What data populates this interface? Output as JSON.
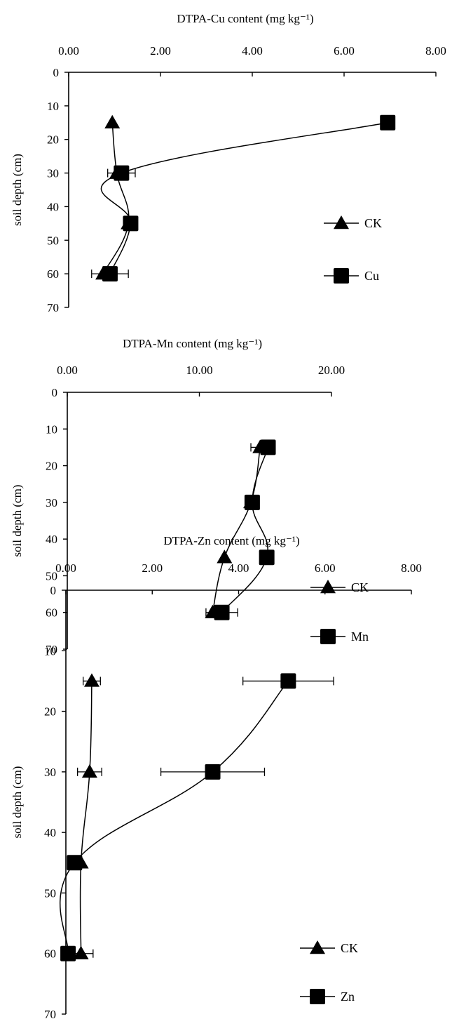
{
  "chart_data": [
    {
      "type": "line",
      "title": "DTPA-Cu content (mg kg⁻¹)",
      "xlabel": "DTPA-Cu content (mg kg⁻¹)",
      "ylabel": "soil depth (cm)",
      "xlim": [
        0,
        8
      ],
      "ylim": [
        0,
        70
      ],
      "x_axis_position": "top",
      "y_axis_reversed": true,
      "x_tick_labels": [
        "0.00",
        "2.00",
        "4.00",
        "6.00",
        "8.00"
      ],
      "y_tick_labels": [
        "0",
        "10",
        "20",
        "30",
        "40",
        "50",
        "60",
        "70"
      ],
      "legend_placement": "right",
      "grid": false,
      "series": [
        {
          "name": "CK",
          "marker": "triangle",
          "depth": [
            15,
            30,
            45,
            60
          ],
          "values": [
            0.95,
            1.05,
            1.3,
            0.75
          ],
          "error": [
            0,
            0,
            0,
            0
          ]
        },
        {
          "name": "Cu",
          "marker": "square",
          "depth": [
            15,
            30,
            45,
            60
          ],
          "values": [
            6.95,
            1.15,
            1.35,
            0.9
          ],
          "error": [
            0,
            0.3,
            0,
            0.4
          ]
        }
      ]
    },
    {
      "type": "line",
      "title": "DTPA-Mn content (mg kg⁻¹)",
      "xlabel": "DTPA-Mn content (mg kg⁻¹)",
      "ylabel": "soil depth (cm)",
      "xlim": [
        0,
        20
      ],
      "ylim": [
        0,
        70
      ],
      "x_axis_position": "top",
      "y_axis_reversed": true,
      "x_tick_labels": [
        "0.00",
        "10.00",
        "20.00"
      ],
      "y_tick_labels": [
        "0",
        "10",
        "20",
        "30",
        "40",
        "50",
        "60",
        "70"
      ],
      "legend_placement": "right",
      "grid": false,
      "series": [
        {
          "name": "CK",
          "marker": "triangle",
          "depth": [
            15,
            30,
            45,
            60
          ],
          "values": [
            14.6,
            13.9,
            11.9,
            11.0
          ],
          "error": [
            0.7,
            0,
            0,
            0
          ]
        },
        {
          "name": "Mn",
          "marker": "square",
          "depth": [
            15,
            30,
            45,
            60
          ],
          "values": [
            15.2,
            14.0,
            15.1,
            11.7
          ],
          "error": [
            0,
            0,
            0,
            1.2
          ]
        }
      ]
    },
    {
      "type": "line",
      "title": "DTPA-Zn content (mg kg⁻¹)",
      "xlabel": "DTPA-Zn content (mg kg⁻¹)",
      "ylabel": "soil depth (cm)",
      "xlim": [
        0,
        8
      ],
      "ylim": [
        0,
        70
      ],
      "x_axis_position": "top",
      "y_axis_reversed": true,
      "x_tick_labels": [
        "0.00",
        "2.00",
        "4.00",
        "6.00",
        "8.00"
      ],
      "y_tick_labels": [
        "0",
        "10",
        "20",
        "30",
        "40",
        "50",
        "60",
        "70"
      ],
      "legend_placement": "right",
      "grid": false,
      "series": [
        {
          "name": "CK",
          "marker": "triangle",
          "depth": [
            15,
            30,
            45,
            60
          ],
          "values": [
            0.6,
            0.55,
            0.35,
            0.35
          ],
          "error": [
            0.2,
            0.28,
            0,
            0.28
          ]
        },
        {
          "name": "Zn",
          "marker": "square",
          "depth": [
            15,
            30,
            45,
            60
          ],
          "values": [
            5.15,
            3.4,
            0.2,
            0.05
          ],
          "error": [
            1.05,
            1.2,
            0,
            0
          ]
        }
      ]
    }
  ]
}
